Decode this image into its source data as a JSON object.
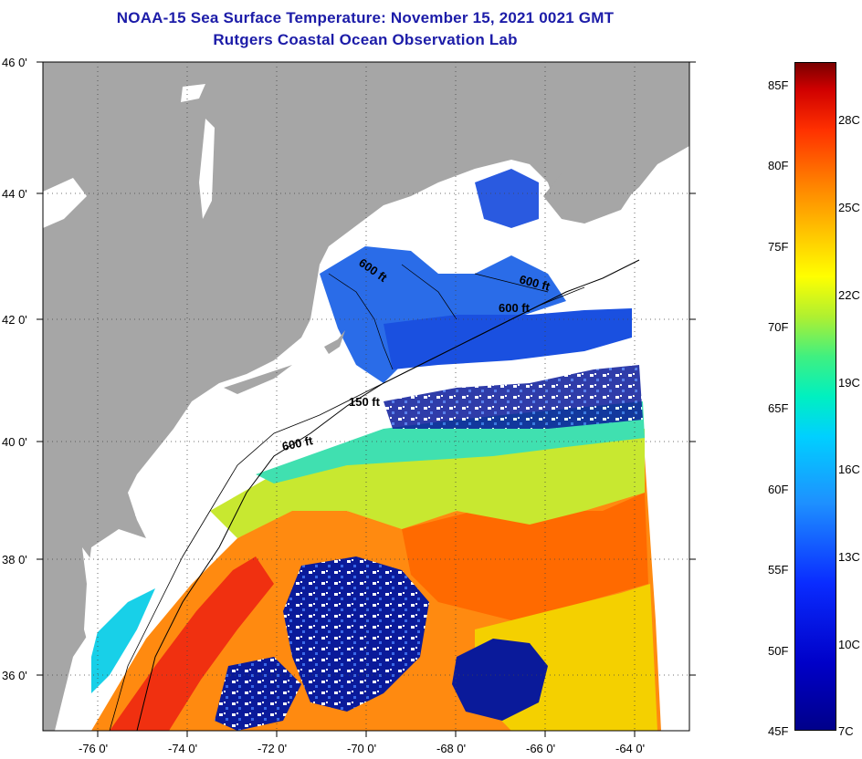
{
  "title": {
    "line1": "NOAA-15 Sea Surface Temperature:  November 15, 2021 0021 GMT",
    "line2": "Rutgers Coastal Ocean Observation Lab"
  },
  "map": {
    "lat_labels": [
      "46 0'",
      "44 0'",
      "42 0'",
      "40 0'",
      "38 0'",
      "36 0'"
    ],
    "lon_labels": [
      "-76 0'",
      "-74 0'",
      "-72 0'",
      "-70 0'",
      "-68 0'",
      "-66 0'",
      "-64 0'"
    ],
    "isobath_labels": [
      "600 ft",
      "600 ft",
      "600 ft",
      "150 ft",
      "600 ft"
    ],
    "colors": {
      "land": "#a6a6a6",
      "cloud_mask": "#ffffff",
      "isobath": "#000000"
    }
  },
  "colorbar": {
    "fahrenheit_labels": [
      "85F",
      "80F",
      "75F",
      "70F",
      "65F",
      "60F",
      "55F",
      "50F",
      "45F"
    ],
    "celsius_labels": [
      "28C",
      "25C",
      "22C",
      "19C",
      "16C",
      "13C",
      "10C",
      "7C"
    ]
  }
}
